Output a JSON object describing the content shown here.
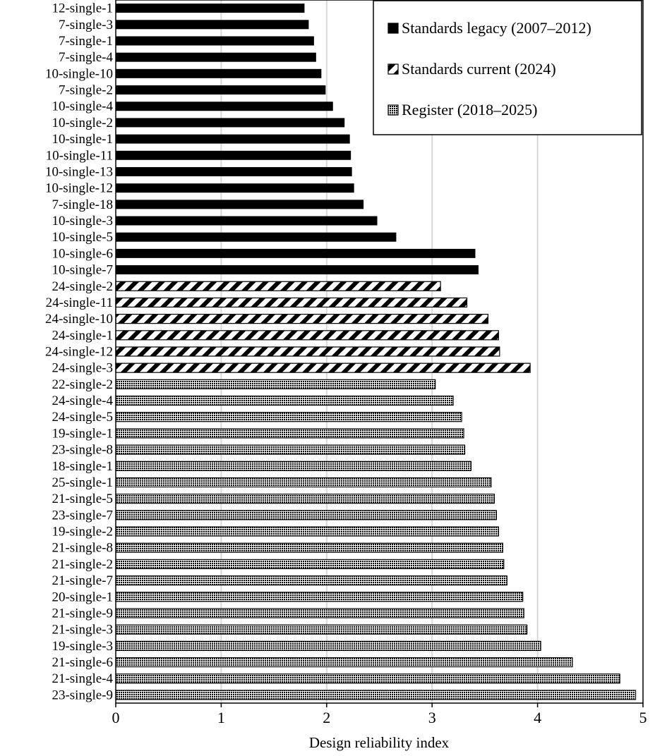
{
  "chart_data": {
    "type": "bar",
    "orientation": "horizontal",
    "xlabel": "Design reliability index",
    "ylabel": "",
    "xlim": [
      0,
      5
    ],
    "xticks": [
      0,
      1,
      2,
      3,
      4,
      5
    ],
    "grid": "vertical",
    "legend_position": "top-right",
    "series": [
      {
        "name": "Standards legacy (2007–2012)",
        "pattern": "solid",
        "color": "#000000",
        "categories": [
          "12-single-1",
          "7-single-3",
          "7-single-1",
          "7-single-4",
          "10-single-10",
          "7-single-2",
          "10-single-4",
          "10-single-2",
          "10-single-1",
          "10-single-11",
          "10-single-13",
          "10-single-12",
          "7-single-18",
          "10-single-3",
          "10-single-5",
          "10-single-6",
          "10-single-7"
        ],
        "values": [
          1.79,
          1.83,
          1.88,
          1.9,
          1.95,
          1.99,
          2.06,
          2.17,
          2.22,
          2.23,
          2.24,
          2.26,
          2.35,
          2.48,
          2.66,
          3.41,
          3.44
        ]
      },
      {
        "name": "Standards current (2024)",
        "pattern": "diagonal-stripes",
        "color": "#000000",
        "categories": [
          "24-single-2",
          "24-single-11",
          "24-single-10",
          "24-single-1",
          "24-single-12",
          "24-single-3"
        ],
        "values": [
          3.08,
          3.33,
          3.53,
          3.63,
          3.64,
          3.93
        ]
      },
      {
        "name": "Register (2018–2025)",
        "pattern": "checker",
        "color": "#000000",
        "categories": [
          "22-single-2",
          "24-single-4",
          "24-single-5",
          "19-single-1",
          "23-single-8",
          "18-single-1",
          "25-single-1",
          "21-single-5",
          "23-single-7",
          "19-single-2",
          "21-single-8",
          "21-single-2",
          "21-single-7",
          "20-single-1",
          "21-single-9",
          "21-single-3",
          "19-single-3",
          "21-single-6",
          "21-single-4",
          "23-single-9"
        ],
        "values": [
          3.03,
          3.2,
          3.28,
          3.3,
          3.31,
          3.37,
          3.56,
          3.59,
          3.61,
          3.63,
          3.67,
          3.68,
          3.71,
          3.86,
          3.87,
          3.9,
          4.03,
          4.33,
          4.78,
          4.93
        ]
      }
    ]
  }
}
